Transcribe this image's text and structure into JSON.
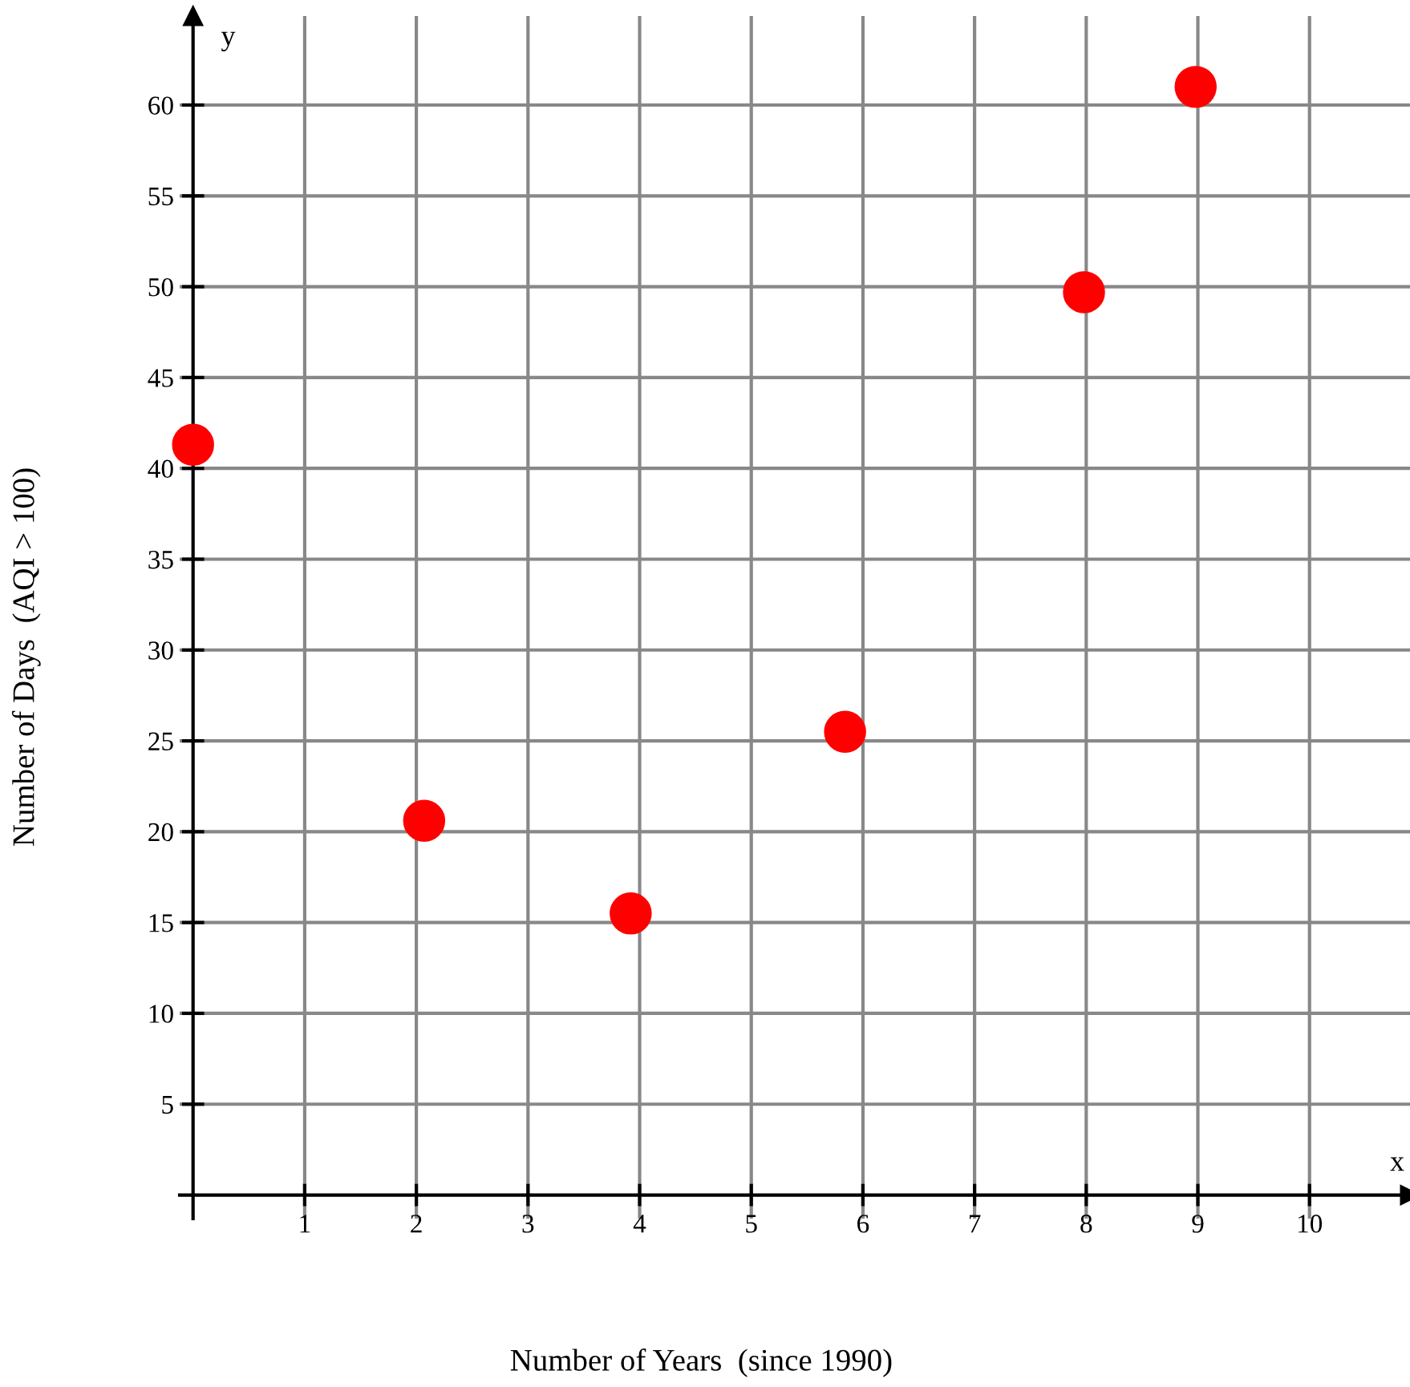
{
  "chart_data": {
    "type": "scatter",
    "xlabel": "Number of Years  (since 1990)",
    "ylabel": "Number of Days  (AQI > 100)",
    "annotations": [
      "x",
      "y"
    ],
    "x": [
      0,
      2.07,
      3.92,
      5.84,
      7.98,
      8.98
    ],
    "series": [
      {
        "color": "#ff0000",
        "values": [
          41.3,
          20.6,
          15.5,
          25.5,
          49.7,
          61.0
        ]
      }
    ],
    "xlim": [
      -0.12,
      10.9
    ],
    "ylim": [
      -1.3,
      64.9
    ],
    "xticks": [
      1,
      2,
      3,
      4,
      5,
      6,
      7,
      8,
      9,
      10
    ],
    "yticks": [
      5,
      10,
      15,
      20,
      25,
      30,
      35,
      40,
      45,
      50,
      55,
      60
    ],
    "grid": true,
    "marker": "circle"
  }
}
